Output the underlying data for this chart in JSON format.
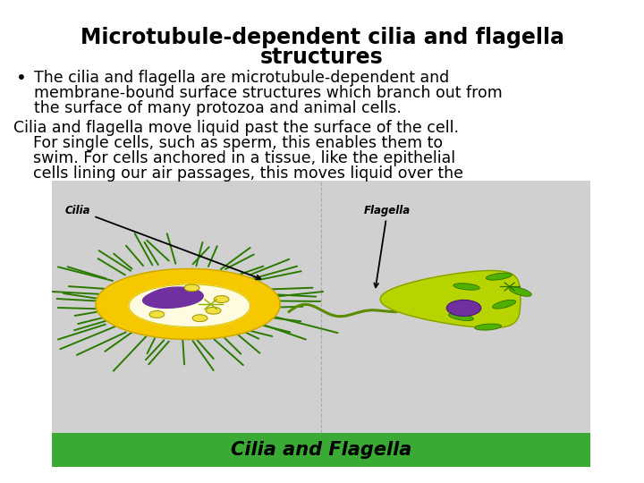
{
  "title_line1": "Microtubule-dependent cilia and flagella",
  "title_line2": "structures",
  "title_fontsize": 17,
  "title_fontweight": "bold",
  "bullet_text_line1": "The cilia and flagella are microtubule-dependent and",
  "bullet_text_line2": "membrane-bound surface structures which branch out from",
  "bullet_text_line3": "the surface of many protozoa and animal cells.",
  "body_text_line1": "Cilia and flagella move liquid past the surface of the cell.",
  "body_text_line2": "    For single cells, such as sperm, this enables them to",
  "body_text_line3": "    swim. For cells anchored in a tissue, like the epithelial",
  "body_text_line4": "    cells lining our air passages, this moves liquid over the",
  "body_fontsize": 12.5,
  "bullet_fontsize": 12.5,
  "bg_color": "#ffffff",
  "text_color": "#000000",
  "image_bg": "#d0d0d0",
  "banner_color": "#3aaa35",
  "banner_text": "Cilia and Flagella",
  "banner_text_color": "#000000",
  "banner_fontsize": 15,
  "cilia_color": "#2a7a00",
  "cell_yellow": "#f5c800",
  "cell_white": "#fffde0",
  "nucleus_color": "#7030a0",
  "flagella_green": "#b8d400",
  "organelle_green": "#50b000"
}
